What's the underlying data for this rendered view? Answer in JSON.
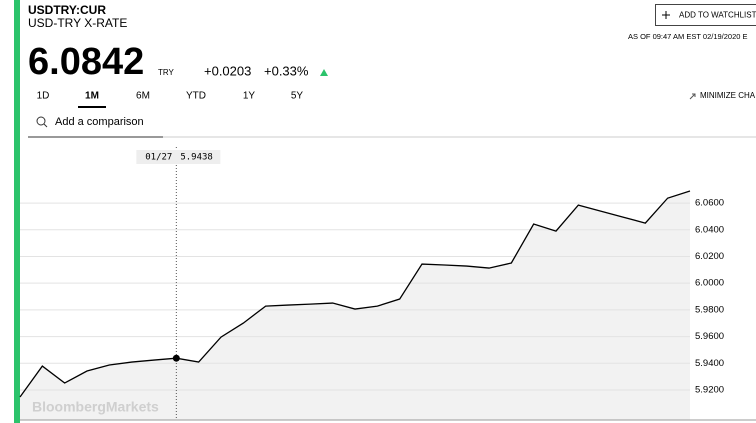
{
  "header": {
    "ticker": "USDTRY:CUR",
    "name": "USD-TRY X-RATE",
    "price": "6.0842",
    "currency": "TRY",
    "change": "+0.0203",
    "change_pct": "+0.33%",
    "as_of": "AS OF 09:47 AM EST 02/19/2020 E",
    "watchlist": "ADD TO WATCHLIST"
  },
  "tabs": [
    "1D",
    "1M",
    "6M",
    "YTD",
    "1Y",
    "5Y"
  ],
  "active_tab": 1,
  "minimize": "MINIMIZE CHA",
  "search_placeholder": "Add a comparison",
  "watermark": "BloombergMarkets",
  "chart_data": {
    "type": "line",
    "categories": [
      null,
      null,
      null,
      null,
      null,
      null,
      null,
      "01/27",
      null,
      null,
      null,
      null,
      null,
      null,
      null,
      null,
      null,
      null,
      null,
      null,
      null,
      null,
      null,
      null,
      null,
      null,
      null,
      null,
      null,
      null,
      null
    ],
    "values": [
      5.9147,
      5.9379,
      5.9252,
      5.9342,
      5.9387,
      5.9409,
      5.9424,
      5.9438,
      5.9409,
      5.9596,
      5.9701,
      5.9828,
      5.9836,
      5.9843,
      5.9851,
      5.9806,
      5.9828,
      5.9881,
      6.0143,
      6.0136,
      6.0128,
      6.0113,
      6.0151,
      6.0443,
      6.039,
      6.0585,
      6.054,
      6.0495,
      6.045,
      6.0637,
      6.069
    ],
    "color": "#000000",
    "area_color": "#f2f2f2",
    "highlight": 7,
    "ylim": [
      5.8975,
      6.102
    ],
    "yticks": [
      {
        "value": 5.92,
        "label": "5.9200"
      },
      {
        "value": 5.94,
        "label": "5.9400"
      },
      {
        "value": 5.96,
        "label": "5.9600"
      },
      {
        "value": 5.98,
        "label": "5.9800"
      },
      {
        "value": 6.0,
        "label": "6.0000"
      },
      {
        "value": 6.02,
        "label": "6.0200"
      },
      {
        "value": 6.04,
        "label": "6.0400"
      },
      {
        "value": 6.06,
        "label": "6.0600"
      }
    ],
    "grid": true
  }
}
